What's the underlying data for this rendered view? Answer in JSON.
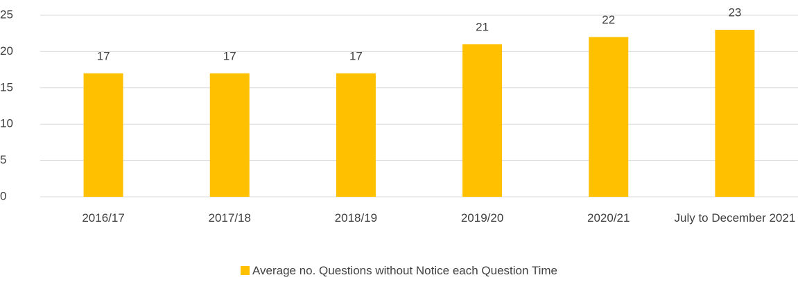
{
  "chart_data": {
    "type": "bar",
    "categories": [
      "2016/17",
      "2017/18",
      "2018/19",
      "2019/20",
      "2020/21",
      "July to December 2021"
    ],
    "series": [
      {
        "name": "Average no. Questions without Notice each Question Time",
        "color": "#ffc000",
        "values": [
          17,
          17,
          17,
          21,
          22,
          23
        ]
      }
    ],
    "ylim": [
      0,
      25
    ],
    "yticks": [
      0,
      5,
      10,
      15,
      20,
      25
    ],
    "grid": true,
    "legend": "bottom"
  }
}
